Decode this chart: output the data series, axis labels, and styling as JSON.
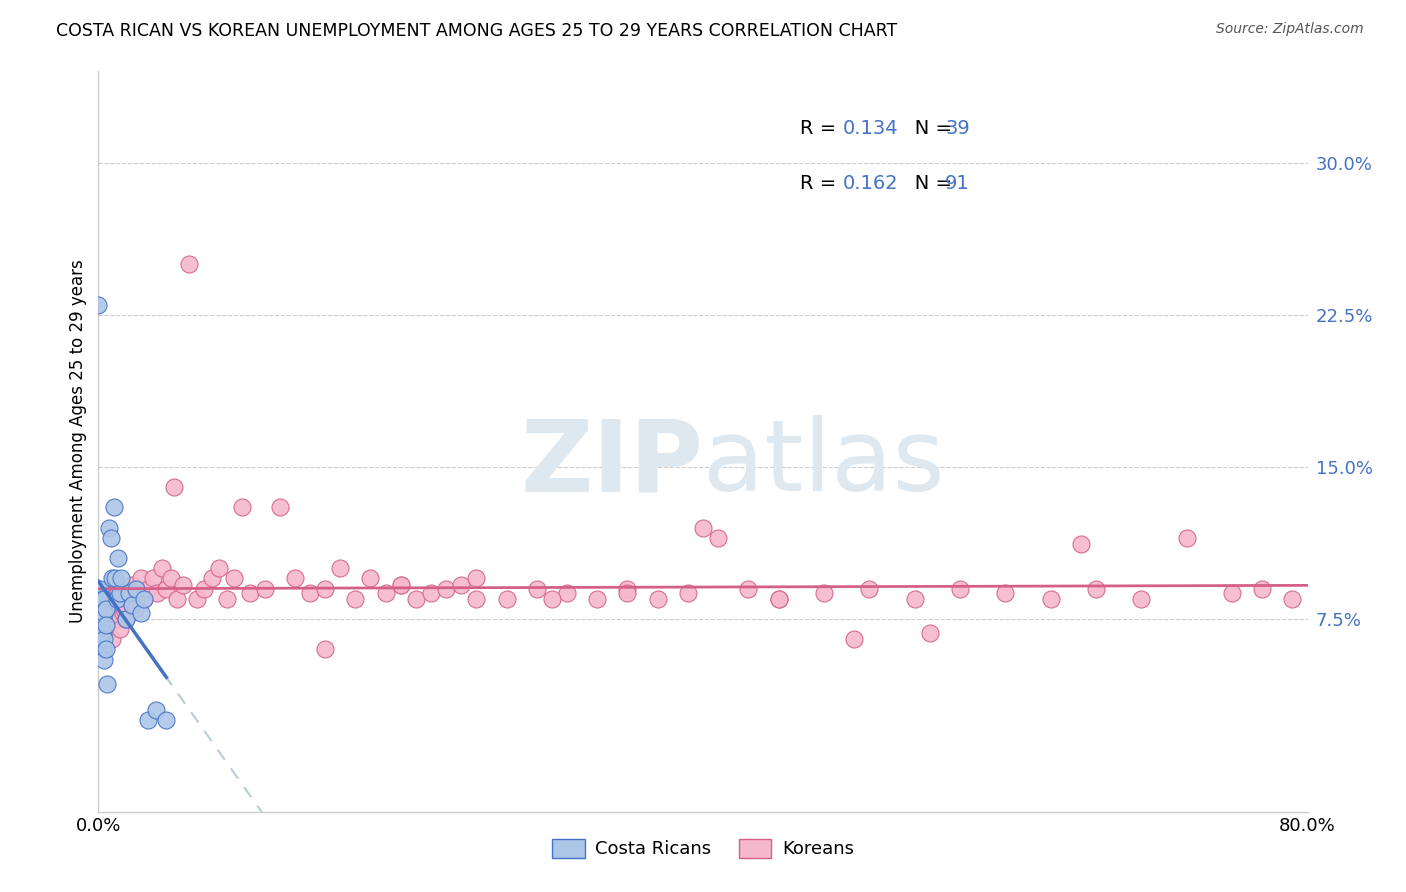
{
  "title": "COSTA RICAN VS KOREAN UNEMPLOYMENT AMONG AGES 25 TO 29 YEARS CORRELATION CHART",
  "source": "Source: ZipAtlas.com",
  "ylabel": "Unemployment Among Ages 25 to 29 years",
  "ytick_labels": [
    "7.5%",
    "15.0%",
    "22.5%",
    "30.0%"
  ],
  "ytick_values": [
    0.075,
    0.15,
    0.225,
    0.3
  ],
  "xlim": [
    0.0,
    0.8
  ],
  "ylim": [
    -0.02,
    0.345
  ],
  "legend_cr_R": "0.134",
  "legend_cr_N": "39",
  "legend_ko_R": "0.162",
  "legend_ko_N": "91",
  "cr_fill_color": "#adc6e8",
  "ko_fill_color": "#f5b8cc",
  "cr_edge_color": "#4472C4",
  "ko_edge_color": "#d4608a",
  "cr_line_color": "#4472C4",
  "ko_line_color": "#d4608a",
  "dash_line_color": "#b8ccd8",
  "watermark_color": "#dde8f0",
  "costa_ricans_x": [
    0.0,
    0.0,
    0.0,
    0.001,
    0.001,
    0.002,
    0.002,
    0.002,
    0.003,
    0.003,
    0.003,
    0.003,
    0.003,
    0.004,
    0.004,
    0.004,
    0.004,
    0.005,
    0.005,
    0.005,
    0.006,
    0.007,
    0.008,
    0.009,
    0.01,
    0.011,
    0.012,
    0.013,
    0.014,
    0.015,
    0.018,
    0.02,
    0.022,
    0.025,
    0.028,
    0.03,
    0.033,
    0.038,
    0.045
  ],
  "costa_ricans_y": [
    0.09,
    0.23,
    0.08,
    0.085,
    0.09,
    0.08,
    0.075,
    0.068,
    0.085,
    0.08,
    0.075,
    0.068,
    0.06,
    0.085,
    0.078,
    0.065,
    0.055,
    0.08,
    0.072,
    0.06,
    0.043,
    0.12,
    0.115,
    0.095,
    0.13,
    0.095,
    0.085,
    0.105,
    0.088,
    0.095,
    0.075,
    0.088,
    0.082,
    0.09,
    0.078,
    0.085,
    0.025,
    0.03,
    0.025
  ],
  "koreans_x": [
    0.0,
    0.001,
    0.002,
    0.003,
    0.004,
    0.005,
    0.006,
    0.007,
    0.008,
    0.009,
    0.01,
    0.011,
    0.012,
    0.013,
    0.014,
    0.015,
    0.016,
    0.017,
    0.018,
    0.019,
    0.02,
    0.022,
    0.024,
    0.026,
    0.028,
    0.03,
    0.033,
    0.036,
    0.039,
    0.042,
    0.045,
    0.048,
    0.052,
    0.056,
    0.06,
    0.065,
    0.07,
    0.075,
    0.08,
    0.085,
    0.09,
    0.095,
    0.1,
    0.11,
    0.12,
    0.13,
    0.14,
    0.15,
    0.16,
    0.17,
    0.18,
    0.19,
    0.2,
    0.21,
    0.22,
    0.23,
    0.24,
    0.25,
    0.27,
    0.29,
    0.31,
    0.33,
    0.35,
    0.37,
    0.39,
    0.41,
    0.43,
    0.45,
    0.48,
    0.51,
    0.54,
    0.57,
    0.6,
    0.63,
    0.66,
    0.69,
    0.72,
    0.75,
    0.77,
    0.79,
    0.3,
    0.4,
    0.5,
    0.2,
    0.25,
    0.35,
    0.45,
    0.55,
    0.65,
    0.05,
    0.15
  ],
  "koreans_y": [
    0.072,
    0.075,
    0.068,
    0.08,
    0.075,
    0.082,
    0.07,
    0.078,
    0.085,
    0.065,
    0.09,
    0.075,
    0.082,
    0.088,
    0.07,
    0.085,
    0.078,
    0.08,
    0.075,
    0.09,
    0.085,
    0.092,
    0.08,
    0.088,
    0.095,
    0.085,
    0.09,
    0.095,
    0.088,
    0.1,
    0.09,
    0.095,
    0.085,
    0.092,
    0.25,
    0.085,
    0.09,
    0.095,
    0.1,
    0.085,
    0.095,
    0.13,
    0.088,
    0.09,
    0.13,
    0.095,
    0.088,
    0.09,
    0.1,
    0.085,
    0.095,
    0.088,
    0.092,
    0.085,
    0.088,
    0.09,
    0.092,
    0.095,
    0.085,
    0.09,
    0.088,
    0.085,
    0.09,
    0.085,
    0.088,
    0.115,
    0.09,
    0.085,
    0.088,
    0.09,
    0.085,
    0.09,
    0.088,
    0.085,
    0.09,
    0.085,
    0.115,
    0.088,
    0.09,
    0.085,
    0.085,
    0.12,
    0.065,
    0.092,
    0.085,
    0.088,
    0.085,
    0.068,
    0.112,
    0.14,
    0.06
  ]
}
